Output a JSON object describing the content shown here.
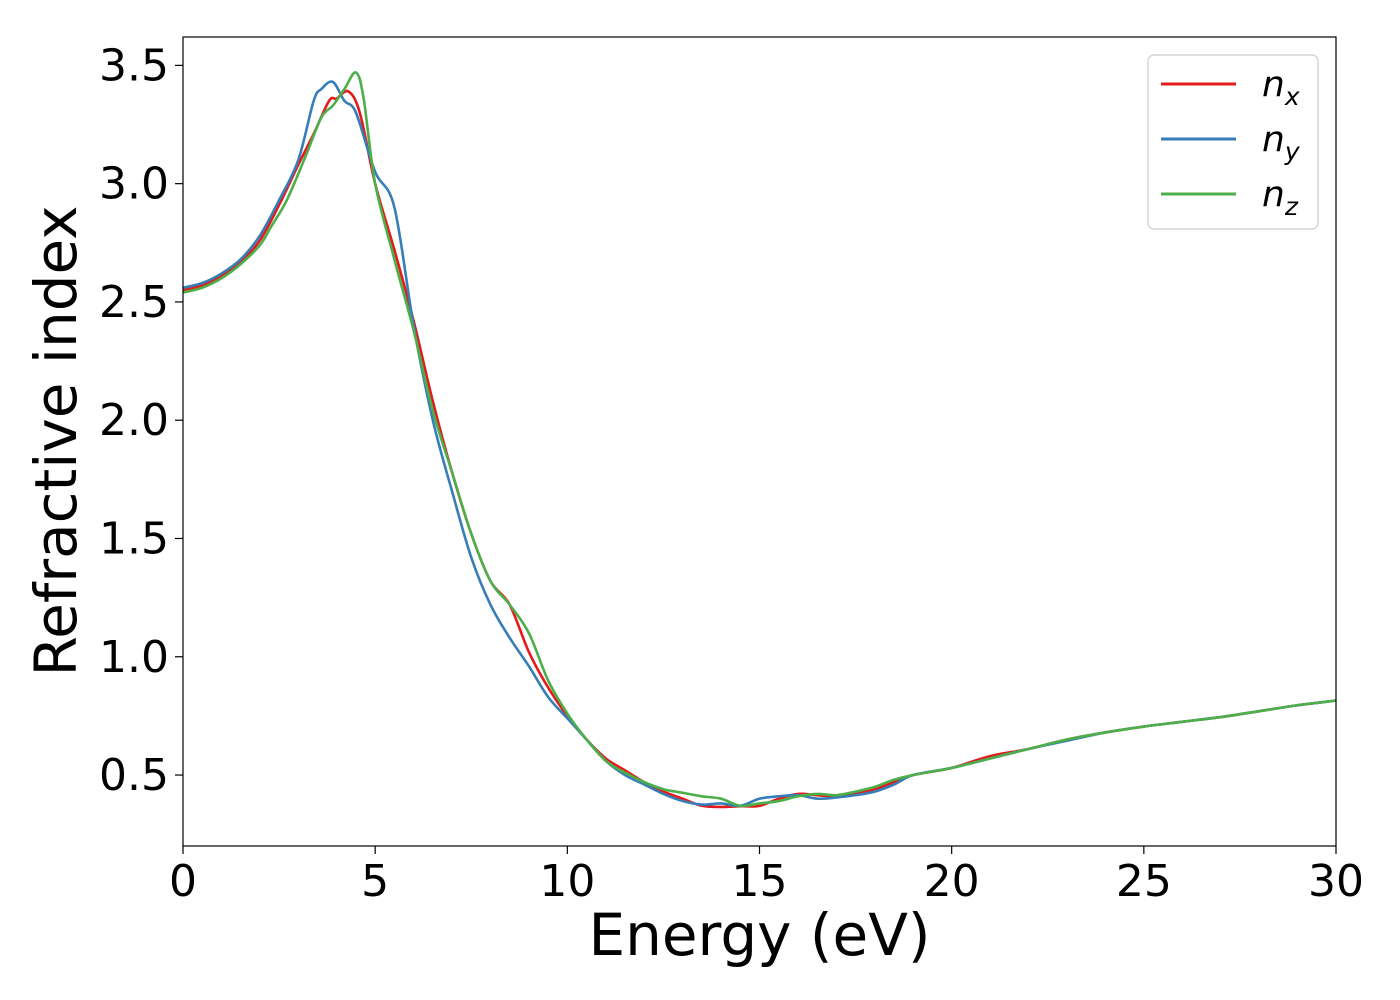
{
  "chart_data": {
    "type": "line",
    "title": "",
    "xlabel": "Energy (eV)",
    "ylabel": "Refractive index",
    "xlim": [
      0,
      30
    ],
    "ylim": [
      0.2,
      3.62
    ],
    "xticks": [
      0,
      5,
      10,
      15,
      20,
      25,
      30
    ],
    "xtick_labels": [
      "0",
      "5",
      "10",
      "15",
      "20",
      "25",
      "30"
    ],
    "yticks": [
      0.5,
      1.0,
      1.5,
      2.0,
      2.5,
      3.0,
      3.5
    ],
    "ytick_labels": [
      "0.5",
      "1.0",
      "1.5",
      "2.0",
      "2.5",
      "3.0",
      "3.5"
    ],
    "grid": false,
    "legend_position": "top-right",
    "series": [
      {
        "name": "n_x",
        "label_base": "n",
        "label_sub": "x",
        "color": "#e41a1c",
        "x": [
          0,
          0.5,
          1,
          1.5,
          2,
          2.5,
          3,
          3.4,
          3.8,
          4.0,
          4.3,
          4.6,
          5.0,
          5.5,
          6.0,
          6.5,
          7.0,
          7.5,
          8.0,
          8.5,
          9.0,
          9.5,
          10.0,
          10.5,
          11.0,
          11.5,
          12.0,
          12.5,
          13.0,
          13.5,
          14.0,
          14.5,
          15.0,
          15.5,
          16.0,
          16.5,
          17.0,
          17.5,
          18.0,
          18.5,
          19.0,
          20.0,
          21.0,
          22.0,
          23.0,
          24.0,
          25.0,
          26.0,
          27.0,
          28.0,
          29.0,
          30.0
        ],
        "y": [
          2.55,
          2.57,
          2.61,
          2.67,
          2.76,
          2.91,
          3.08,
          3.21,
          3.35,
          3.36,
          3.39,
          3.3,
          3.0,
          2.72,
          2.42,
          2.08,
          1.78,
          1.52,
          1.32,
          1.22,
          1.02,
          0.87,
          0.75,
          0.65,
          0.57,
          0.52,
          0.47,
          0.43,
          0.4,
          0.37,
          0.365,
          0.368,
          0.37,
          0.4,
          0.42,
          0.415,
          0.41,
          0.42,
          0.44,
          0.47,
          0.5,
          0.53,
          0.58,
          0.61,
          0.65,
          0.68,
          0.705,
          0.725,
          0.745,
          0.77,
          0.795,
          0.815
        ]
      },
      {
        "name": "n_y",
        "label_base": "n",
        "label_sub": "y",
        "color": "#377eb8",
        "x": [
          0,
          0.5,
          1,
          1.5,
          2,
          2.5,
          3,
          3.4,
          3.6,
          3.9,
          4.2,
          4.5,
          5.0,
          5.5,
          6.0,
          6.5,
          7.0,
          7.5,
          8.0,
          8.5,
          9.0,
          9.5,
          10.0,
          10.5,
          11.0,
          11.5,
          12.0,
          12.5,
          13.0,
          13.5,
          14.0,
          14.5,
          15.0,
          15.5,
          16.0,
          16.5,
          17.0,
          17.5,
          18.0,
          18.5,
          19.0,
          20.0,
          21.0,
          22.0,
          23.0,
          24.0,
          25.0,
          26.0,
          27.0,
          28.0,
          29.0,
          30.0
        ],
        "y": [
          2.56,
          2.58,
          2.62,
          2.68,
          2.78,
          2.93,
          3.1,
          3.35,
          3.4,
          3.43,
          3.35,
          3.3,
          3.05,
          2.9,
          2.4,
          2.0,
          1.7,
          1.42,
          1.22,
          1.08,
          0.96,
          0.83,
          0.74,
          0.65,
          0.56,
          0.5,
          0.46,
          0.42,
          0.39,
          0.375,
          0.38,
          0.37,
          0.4,
          0.41,
          0.415,
          0.4,
          0.405,
          0.415,
          0.43,
          0.46,
          0.5,
          0.53,
          0.57,
          0.61,
          0.645,
          0.68,
          0.705,
          0.725,
          0.745,
          0.77,
          0.795,
          0.815
        ]
      },
      {
        "name": "n_z",
        "label_base": "n",
        "label_sub": "z",
        "color": "#4daf4a",
        "x": [
          0,
          0.5,
          1,
          1.5,
          2,
          2.3,
          2.7,
          3.2,
          3.6,
          3.9,
          4.2,
          4.5,
          4.7,
          5.0,
          5.5,
          6.0,
          6.5,
          7.0,
          7.5,
          8.0,
          8.5,
          9.0,
          9.5,
          10.0,
          10.5,
          11.0,
          11.5,
          12.0,
          12.5,
          13.0,
          13.5,
          14.0,
          14.5,
          15.0,
          15.5,
          16.0,
          16.5,
          17.0,
          17.5,
          18.0,
          18.5,
          19.0,
          20.0,
          21.0,
          22.0,
          23.0,
          24.0,
          25.0,
          26.0,
          27.0,
          28.0,
          29.0,
          30.0
        ],
        "y": [
          2.54,
          2.56,
          2.6,
          2.66,
          2.74,
          2.82,
          2.93,
          3.12,
          3.28,
          3.33,
          3.4,
          3.47,
          3.36,
          3.0,
          2.68,
          2.38,
          2.04,
          1.78,
          1.52,
          1.32,
          1.22,
          1.1,
          0.9,
          0.76,
          0.65,
          0.56,
          0.51,
          0.47,
          0.44,
          0.425,
          0.41,
          0.4,
          0.37,
          0.38,
          0.39,
          0.41,
          0.42,
          0.415,
          0.43,
          0.45,
          0.48,
          0.5,
          0.53,
          0.57,
          0.61,
          0.65,
          0.68,
          0.705,
          0.725,
          0.745,
          0.77,
          0.795,
          0.815
        ]
      }
    ]
  }
}
